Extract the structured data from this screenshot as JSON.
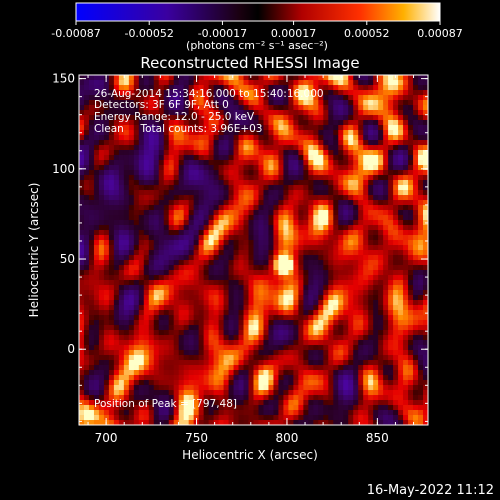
{
  "colors": {
    "background": "#000000",
    "text": "#ffffff",
    "frame": "#ffffff"
  },
  "colorbar": {
    "tick_labels": [
      "-0.00087",
      "-0.00052",
      "-0.00017",
      "0.00017",
      "0.00052",
      "0.00087"
    ],
    "tick_values": [
      -0.00087,
      -0.00052,
      -0.00017,
      0.00017,
      0.00052,
      0.00087
    ],
    "range": [
      -0.00087,
      0.00087
    ],
    "unit_label": "(photons cm⁻² s⁻¹ asec⁻²)"
  },
  "chart_data": {
    "type": "heatmap",
    "title": "Reconstructed RHESSI Image",
    "xlabel": "Heliocentric X (arcsec)",
    "ylabel": "Heliocentric Y (arcsec)",
    "xlim": [
      685,
      878
    ],
    "ylim": [
      -42,
      152
    ],
    "x_ticks": [
      700,
      750,
      800,
      850
    ],
    "y_ticks": [
      0,
      50,
      100,
      150
    ],
    "peak": [
      797,
      48
    ],
    "annotations": [
      "26-Aug-2014 15:34:16.000 to 15:40:16.000",
      "Detectors: 3F 6F 9F, Att 0",
      "Energy Range: 12.0 - 25.0 keV",
      "Clean     Total counts: 3.96E+03"
    ],
    "peak_label": "Position of Peak = [797,48]"
  },
  "footer": {
    "timestamp": "16-May-2022 11:12"
  }
}
